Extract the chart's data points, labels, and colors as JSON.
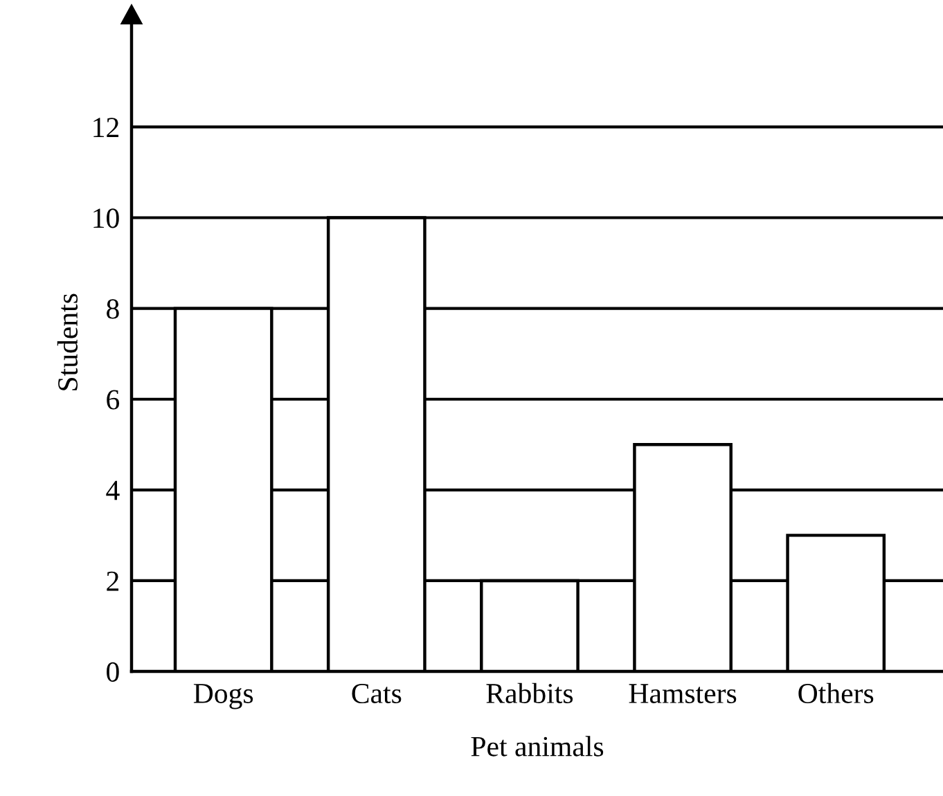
{
  "chart_data": {
    "type": "bar",
    "xlabel": "Pet animals",
    "ylabel": "Students",
    "categories": [
      "Dogs",
      "Cats",
      "Rabbits",
      "Hamsters",
      "Others"
    ],
    "values": [
      8,
      10,
      2,
      5,
      3
    ],
    "color": "#ffffff",
    "ylim": [
      0,
      14.5
    ],
    "yticks": [
      0,
      2,
      4,
      6,
      8,
      10,
      12
    ],
    "grid": "y",
    "legend": false
  }
}
